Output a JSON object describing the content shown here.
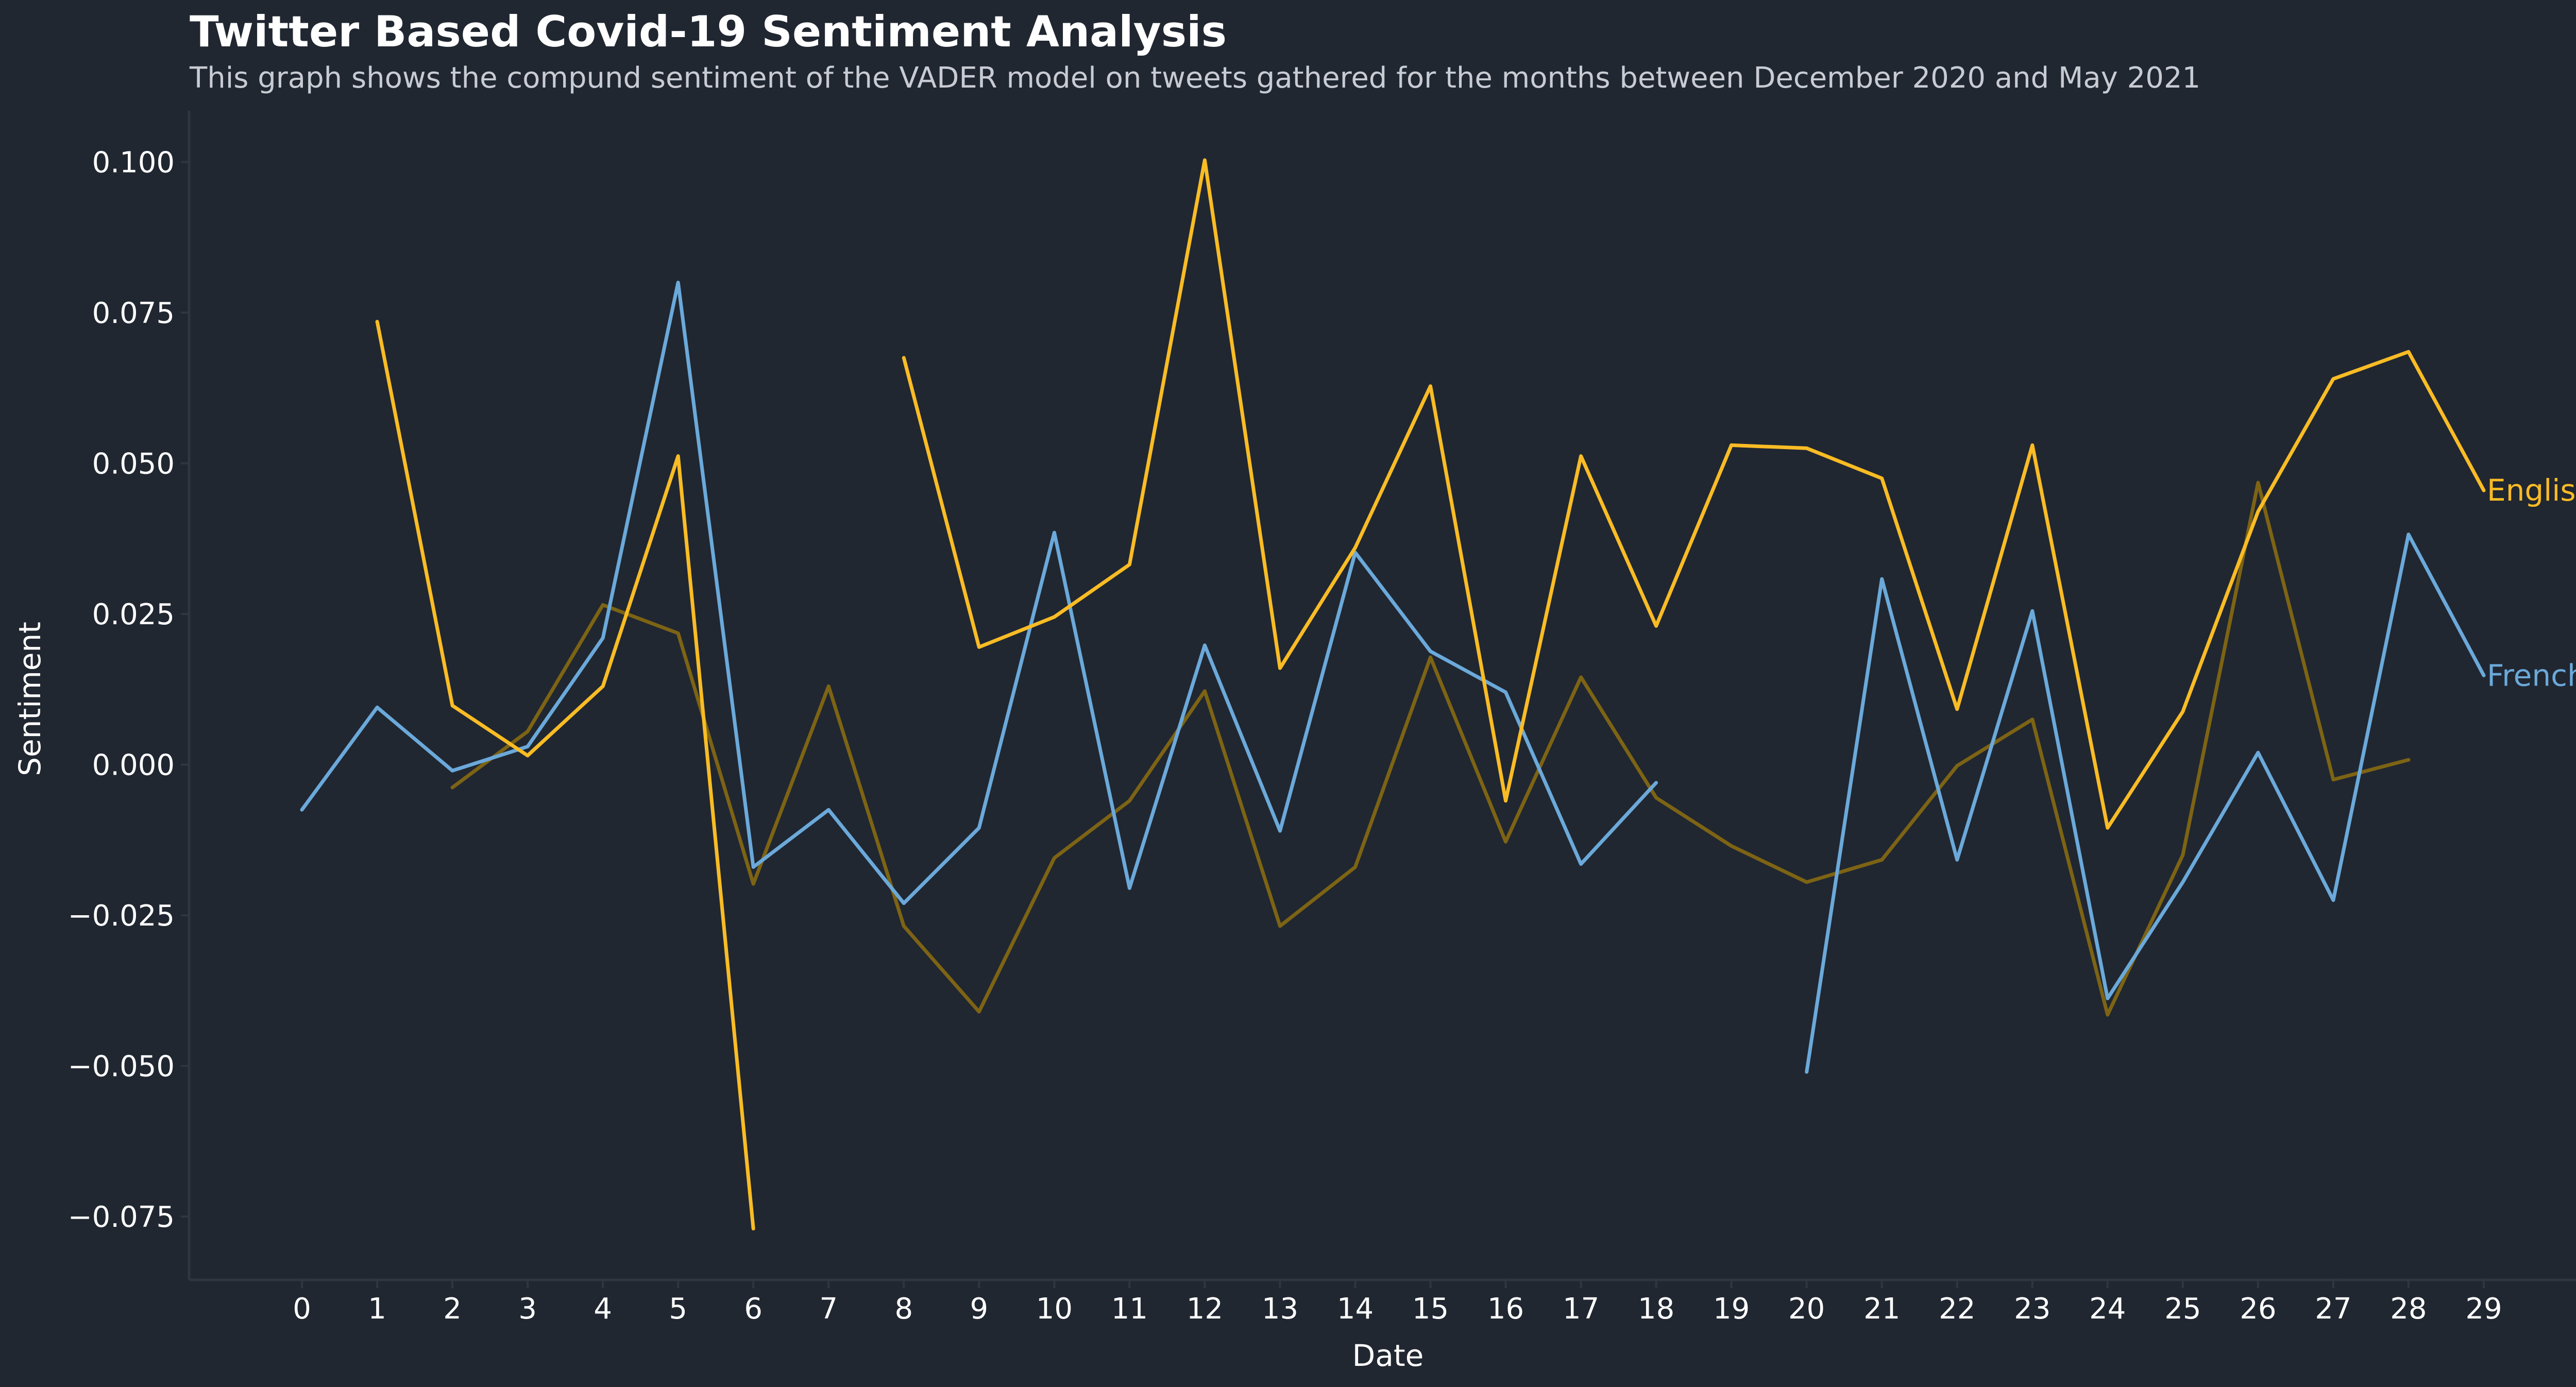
{
  "chart_data": {
    "type": "line",
    "title": "Twitter Based Covid-19 Sentiment Analysis",
    "subtitle": "This graph shows the compund sentiment of the VADER model on tweets gathered for the months between December 2020 and May 2021",
    "xlabel": "Date",
    "ylabel": "Sentiment",
    "xlim": [
      -1.5,
      30.5
    ],
    "ylim": [
      -0.0855,
      0.1085
    ],
    "x": [
      0,
      1,
      2,
      3,
      4,
      5,
      6,
      7,
      8,
      9,
      10,
      11,
      12,
      13,
      14,
      15,
      16,
      17,
      18,
      19,
      20,
      21,
      22,
      23,
      24,
      25,
      26,
      27,
      28,
      29
    ],
    "x_ticks": [
      "0",
      "1",
      "2",
      "3",
      "4",
      "5",
      "6",
      "7",
      "8",
      "9",
      "10",
      "11",
      "12",
      "13",
      "14",
      "15",
      "16",
      "17",
      "18",
      "19",
      "20",
      "21",
      "22",
      "23",
      "24",
      "25",
      "26",
      "27",
      "28",
      "29"
    ],
    "y_ticks": [
      {
        "value": 0.1,
        "label": "0.100"
      },
      {
        "value": 0.075,
        "label": "0.075"
      },
      {
        "value": 0.05,
        "label": "0.050"
      },
      {
        "value": 0.025,
        "label": "0.025"
      },
      {
        "value": 0.0,
        "label": "0.000"
      },
      {
        "value": -0.025,
        "label": "−0.025"
      },
      {
        "value": -0.05,
        "label": "−0.050"
      },
      {
        "value": -0.075,
        "label": "−0.075"
      }
    ],
    "grid": false,
    "series": [
      {
        "id": "dim",
        "color": "#7d6314",
        "values": [
          null,
          null,
          -0.0038,
          0.0055,
          0.0265,
          0.0218,
          -0.0198,
          0.013,
          -0.0268,
          -0.041,
          -0.0155,
          -0.006,
          0.0122,
          -0.0268,
          -0.017,
          0.0178,
          -0.0128,
          0.0145,
          -0.0055,
          -0.0135,
          -0.0195,
          -0.0158,
          -0.0002,
          0.0075,
          -0.0415,
          -0.015,
          0.0468,
          -0.0025,
          0.0008,
          null
        ]
      },
      {
        "id": "french",
        "name": "French",
        "color": "#6aa9da",
        "values": [
          -0.0075,
          0.0095,
          -0.001,
          0.003,
          0.021,
          0.08,
          -0.017,
          -0.0075,
          -0.023,
          -0.0105,
          0.0385,
          -0.0205,
          0.0198,
          -0.011,
          0.0352,
          0.0188,
          0.012,
          -0.0165,
          -0.003,
          null,
          -0.051,
          0.0308,
          -0.0158,
          0.0255,
          -0.0388,
          -0.0195,
          0.002,
          -0.0225,
          0.0382,
          0.0148
        ]
      },
      {
        "id": "english",
        "name": "English",
        "color": "#f9bc25",
        "values": [
          null,
          0.0735,
          0.0098,
          0.0015,
          0.013,
          0.0512,
          -0.077,
          null,
          0.0675,
          0.0195,
          0.0245,
          0.0332,
          0.1003,
          0.016,
          0.036,
          0.0628,
          -0.006,
          0.0512,
          0.023,
          0.053,
          0.0525,
          0.0475,
          0.0092,
          0.053,
          -0.0105,
          0.0088,
          0.042,
          0.064,
          0.0685,
          0.0455
        ]
      }
    ]
  }
}
